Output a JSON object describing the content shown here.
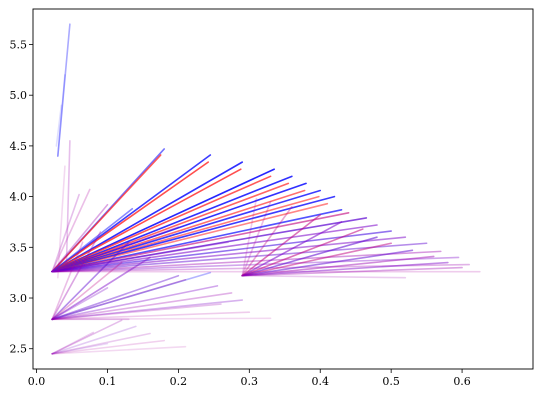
{
  "chart_data": {
    "type": "line",
    "title": "",
    "xlabel": "",
    "ylabel": "",
    "xlim": [
      -0.005,
      0.7
    ],
    "ylim": [
      2.3,
      5.85
    ],
    "x_ticks": [
      0.0,
      0.1,
      0.2,
      0.3,
      0.4,
      0.5,
      0.6
    ],
    "x_tick_labels": [
      "0.0",
      "0.1",
      "0.2",
      "0.3",
      "0.4",
      "0.5",
      "0.6"
    ],
    "y_ticks": [
      2.5,
      3.0,
      3.5,
      4.0,
      4.5,
      5.0,
      5.5
    ],
    "y_tick_labels": [
      "2.5",
      "3.0",
      "3.5",
      "4.0",
      "4.5",
      "5.0",
      "5.5"
    ],
    "grid": false,
    "legend": "none",
    "colors": {
      "red": "#ff0000",
      "blue": "#0000ff",
      "purple": "#7a00c8"
    },
    "groups": [
      {
        "origin": [
          0.022,
          3.26
        ],
        "segments": [
          {
            "x1": 0.022,
            "y1": 3.26,
            "x2": 0.18,
            "y2": 4.47,
            "color": "#2a2aff",
            "alpha": 0.65
          },
          {
            "x1": 0.022,
            "y1": 3.26,
            "x2": 0.175,
            "y2": 4.41,
            "color": "#ff2222",
            "alpha": 0.75
          },
          {
            "x1": 0.022,
            "y1": 3.26,
            "x2": 0.245,
            "y2": 4.41,
            "color": "#1a1aff",
            "alpha": 0.85
          },
          {
            "x1": 0.022,
            "y1": 3.26,
            "x2": 0.242,
            "y2": 4.34,
            "color": "#ff2222",
            "alpha": 0.8
          },
          {
            "x1": 0.022,
            "y1": 3.26,
            "x2": 0.29,
            "y2": 4.34,
            "color": "#1a1aff",
            "alpha": 0.9
          },
          {
            "x1": 0.022,
            "y1": 3.26,
            "x2": 0.288,
            "y2": 4.27,
            "color": "#ff2222",
            "alpha": 0.8
          },
          {
            "x1": 0.022,
            "y1": 3.26,
            "x2": 0.335,
            "y2": 4.27,
            "color": "#1a1aff",
            "alpha": 0.95
          },
          {
            "x1": 0.022,
            "y1": 3.26,
            "x2": 0.33,
            "y2": 4.2,
            "color": "#ff2222",
            "alpha": 0.75
          },
          {
            "x1": 0.022,
            "y1": 3.26,
            "x2": 0.36,
            "y2": 4.2,
            "color": "#1a1aff",
            "alpha": 0.9
          },
          {
            "x1": 0.022,
            "y1": 3.26,
            "x2": 0.355,
            "y2": 4.13,
            "color": "#ff2222",
            "alpha": 0.7
          },
          {
            "x1": 0.022,
            "y1": 3.26,
            "x2": 0.38,
            "y2": 4.13,
            "color": "#1a1aff",
            "alpha": 0.9
          },
          {
            "x1": 0.022,
            "y1": 3.26,
            "x2": 0.378,
            "y2": 4.06,
            "color": "#ff2222",
            "alpha": 0.65
          },
          {
            "x1": 0.022,
            "y1": 3.26,
            "x2": 0.4,
            "y2": 4.06,
            "color": "#1a1aff",
            "alpha": 0.85
          },
          {
            "x1": 0.022,
            "y1": 3.26,
            "x2": 0.398,
            "y2": 4.0,
            "color": "#ff2222",
            "alpha": 0.6
          },
          {
            "x1": 0.022,
            "y1": 3.26,
            "x2": 0.42,
            "y2": 4.0,
            "color": "#1a1aff",
            "alpha": 0.85
          },
          {
            "x1": 0.022,
            "y1": 3.26,
            "x2": 0.41,
            "y2": 3.93,
            "color": "#ff2222",
            "alpha": 0.55
          },
          {
            "x1": 0.022,
            "y1": 3.26,
            "x2": 0.43,
            "y2": 3.87,
            "color": "#1a1aff",
            "alpha": 0.75
          },
          {
            "x1": 0.022,
            "y1": 3.26,
            "x2": 0.44,
            "y2": 3.84,
            "color": "#c0007a",
            "alpha": 0.6
          },
          {
            "x1": 0.022,
            "y1": 3.26,
            "x2": 0.465,
            "y2": 3.79,
            "color": "#5a00d0",
            "alpha": 0.7
          },
          {
            "x1": 0.022,
            "y1": 3.26,
            "x2": 0.48,
            "y2": 3.72,
            "color": "#7a00c8",
            "alpha": 0.55
          },
          {
            "x1": 0.022,
            "y1": 3.26,
            "x2": 0.5,
            "y2": 3.66,
            "color": "#3a00e0",
            "alpha": 0.55
          },
          {
            "x1": 0.022,
            "y1": 3.26,
            "x2": 0.52,
            "y2": 3.6,
            "color": "#7a00c8",
            "alpha": 0.5
          },
          {
            "x1": 0.022,
            "y1": 3.26,
            "x2": 0.55,
            "y2": 3.54,
            "color": "#5a00d0",
            "alpha": 0.45
          },
          {
            "x1": 0.022,
            "y1": 3.26,
            "x2": 0.57,
            "y2": 3.46,
            "color": "#9a00b0",
            "alpha": 0.4
          },
          {
            "x1": 0.022,
            "y1": 3.26,
            "x2": 0.595,
            "y2": 3.4,
            "color": "#7a00c8",
            "alpha": 0.35
          },
          {
            "x1": 0.022,
            "y1": 3.26,
            "x2": 0.61,
            "y2": 3.33,
            "color": "#9a00b0",
            "alpha": 0.3
          },
          {
            "x1": 0.022,
            "y1": 3.26,
            "x2": 0.625,
            "y2": 3.26,
            "color": "#b000a0",
            "alpha": 0.2
          },
          {
            "x1": 0.022,
            "y1": 3.26,
            "x2": 0.135,
            "y2": 3.88,
            "color": "#2a2aff",
            "alpha": 0.55
          },
          {
            "x1": 0.022,
            "y1": 3.26,
            "x2": 0.1,
            "y2": 3.92,
            "color": "#9a00b0",
            "alpha": 0.35
          },
          {
            "x1": 0.022,
            "y1": 3.26,
            "x2": 0.075,
            "y2": 4.07,
            "color": "#b000a0",
            "alpha": 0.25
          },
          {
            "x1": 0.022,
            "y1": 3.26,
            "x2": 0.06,
            "y2": 4.02,
            "color": "#9a00b0",
            "alpha": 0.25
          },
          {
            "x1": 0.022,
            "y1": 3.26,
            "x2": 0.2,
            "y2": 3.7,
            "color": "#9a00b0",
            "alpha": 0.35
          },
          {
            "x1": 0.022,
            "y1": 3.26,
            "x2": 0.27,
            "y2": 3.55,
            "color": "#7a00c8",
            "alpha": 0.3
          }
        ]
      },
      {
        "origin": [
          0.29,
          3.22
        ],
        "segments": [
          {
            "x1": 0.29,
            "y1": 3.22,
            "x2": 0.4,
            "y2": 3.82,
            "color": "#c00080",
            "alpha": 0.55
          },
          {
            "x1": 0.29,
            "y1": 3.22,
            "x2": 0.43,
            "y2": 3.75,
            "color": "#7a00c8",
            "alpha": 0.55
          },
          {
            "x1": 0.29,
            "y1": 3.22,
            "x2": 0.46,
            "y2": 3.68,
            "color": "#c00080",
            "alpha": 0.55
          },
          {
            "x1": 0.29,
            "y1": 3.22,
            "x2": 0.48,
            "y2": 3.6,
            "color": "#5a00d0",
            "alpha": 0.55
          },
          {
            "x1": 0.29,
            "y1": 3.22,
            "x2": 0.5,
            "y2": 3.54,
            "color": "#c00080",
            "alpha": 0.5
          },
          {
            "x1": 0.29,
            "y1": 3.22,
            "x2": 0.53,
            "y2": 3.47,
            "color": "#5a00d0",
            "alpha": 0.5
          },
          {
            "x1": 0.29,
            "y1": 3.22,
            "x2": 0.56,
            "y2": 3.41,
            "color": "#9a00b0",
            "alpha": 0.45
          },
          {
            "x1": 0.29,
            "y1": 3.22,
            "x2": 0.58,
            "y2": 3.35,
            "color": "#7a00c8",
            "alpha": 0.45
          },
          {
            "x1": 0.29,
            "y1": 3.22,
            "x2": 0.6,
            "y2": 3.3,
            "color": "#9a00b0",
            "alpha": 0.35
          },
          {
            "x1": 0.29,
            "y1": 3.22,
            "x2": 0.36,
            "y2": 3.9,
            "color": "#c00080",
            "alpha": 0.35
          },
          {
            "x1": 0.29,
            "y1": 3.22,
            "x2": 0.33,
            "y2": 3.95,
            "color": "#b000a0",
            "alpha": 0.25
          },
          {
            "x1": 0.29,
            "y1": 3.22,
            "x2": 0.31,
            "y2": 3.98,
            "color": "#b000a0",
            "alpha": 0.2
          },
          {
            "x1": 0.29,
            "y1": 3.22,
            "x2": 0.52,
            "y2": 3.2,
            "color": "#9a00b0",
            "alpha": 0.2
          }
        ]
      },
      {
        "origin": [
          0.022,
          2.79
        ],
        "segments": [
          {
            "x1": 0.022,
            "y1": 2.79,
            "x2": 0.13,
            "y2": 3.55,
            "color": "#5a00d0",
            "alpha": 0.45
          },
          {
            "x1": 0.022,
            "y1": 2.79,
            "x2": 0.09,
            "y2": 3.65,
            "color": "#9a00b0",
            "alpha": 0.35
          },
          {
            "x1": 0.022,
            "y1": 2.79,
            "x2": 0.065,
            "y2": 3.55,
            "color": "#b000a0",
            "alpha": 0.25
          },
          {
            "x1": 0.022,
            "y1": 2.79,
            "x2": 0.16,
            "y2": 3.4,
            "color": "#7a00c8",
            "alpha": 0.45
          },
          {
            "x1": 0.022,
            "y1": 2.79,
            "x2": 0.2,
            "y2": 3.22,
            "color": "#5a00d0",
            "alpha": 0.4
          },
          {
            "x1": 0.022,
            "y1": 2.79,
            "x2": 0.21,
            "y2": 3.18,
            "color": "#c00080",
            "alpha": 0.35
          },
          {
            "x1": 0.022,
            "y1": 2.79,
            "x2": 0.245,
            "y2": 3.25,
            "color": "#2a2aff",
            "alpha": 0.35
          },
          {
            "x1": 0.022,
            "y1": 2.79,
            "x2": 0.255,
            "y2": 3.12,
            "color": "#7a00c8",
            "alpha": 0.35
          },
          {
            "x1": 0.022,
            "y1": 2.79,
            "x2": 0.275,
            "y2": 3.05,
            "color": "#9a00b0",
            "alpha": 0.3
          },
          {
            "x1": 0.022,
            "y1": 2.79,
            "x2": 0.29,
            "y2": 2.98,
            "color": "#7a00c8",
            "alpha": 0.3
          },
          {
            "x1": 0.022,
            "y1": 2.79,
            "x2": 0.26,
            "y2": 2.94,
            "color": "#9a00b0",
            "alpha": 0.25
          },
          {
            "x1": 0.022,
            "y1": 2.79,
            "x2": 0.3,
            "y2": 2.86,
            "color": "#b000a0",
            "alpha": 0.2
          },
          {
            "x1": 0.022,
            "y1": 2.79,
            "x2": 0.33,
            "y2": 2.8,
            "color": "#b000a0",
            "alpha": 0.15
          },
          {
            "x1": 0.022,
            "y1": 2.79,
            "x2": 0.12,
            "y2": 3.35,
            "color": "#c00080",
            "alpha": 0.3
          },
          {
            "x1": 0.022,
            "y1": 2.79,
            "x2": 0.1,
            "y2": 3.1,
            "color": "#7a00c8",
            "alpha": 0.3
          },
          {
            "x1": 0.022,
            "y1": 2.79,
            "x2": 0.13,
            "y2": 2.79,
            "color": "#9a00b0",
            "alpha": 0.2
          }
        ]
      },
      {
        "origin": [
          0.022,
          2.45
        ],
        "segments": [
          {
            "x1": 0.022,
            "y1": 2.45,
            "x2": 0.12,
            "y2": 2.78,
            "color": "#9a00b0",
            "alpha": 0.25
          },
          {
            "x1": 0.022,
            "y1": 2.45,
            "x2": 0.14,
            "y2": 2.72,
            "color": "#7a00c8",
            "alpha": 0.2
          },
          {
            "x1": 0.022,
            "y1": 2.45,
            "x2": 0.16,
            "y2": 2.65,
            "color": "#9a00b0",
            "alpha": 0.2
          },
          {
            "x1": 0.022,
            "y1": 2.45,
            "x2": 0.18,
            "y2": 2.58,
            "color": "#b000a0",
            "alpha": 0.18
          },
          {
            "x1": 0.022,
            "y1": 2.45,
            "x2": 0.21,
            "y2": 2.52,
            "color": "#b000a0",
            "alpha": 0.15
          },
          {
            "x1": 0.022,
            "y1": 2.45,
            "x2": 0.08,
            "y2": 2.66,
            "color": "#9a00b0",
            "alpha": 0.2
          },
          {
            "x1": 0.022,
            "y1": 2.45,
            "x2": 0.1,
            "y2": 2.55,
            "color": "#7a00c8",
            "alpha": 0.15
          }
        ]
      },
      {
        "origin": [
          0.03,
          4.4
        ],
        "segments": [
          {
            "x1": 0.03,
            "y1": 4.4,
            "x2": 0.047,
            "y2": 5.7,
            "color": "#2a2aff",
            "alpha": 0.4
          },
          {
            "x1": 0.03,
            "y1": 4.4,
            "x2": 0.04,
            "y2": 5.2,
            "color": "#2a2aff",
            "alpha": 0.2
          },
          {
            "x1": 0.028,
            "y1": 4.5,
            "x2": 0.035,
            "y2": 4.9,
            "color": "#2a2aff",
            "alpha": 0.15
          },
          {
            "x1": 0.042,
            "y1": 3.3,
            "x2": 0.047,
            "y2": 4.55,
            "color": "#9a00b0",
            "alpha": 0.25
          },
          {
            "x1": 0.03,
            "y1": 3.2,
            "x2": 0.04,
            "y2": 4.3,
            "color": "#b000a0",
            "alpha": 0.15
          }
        ]
      }
    ]
  }
}
